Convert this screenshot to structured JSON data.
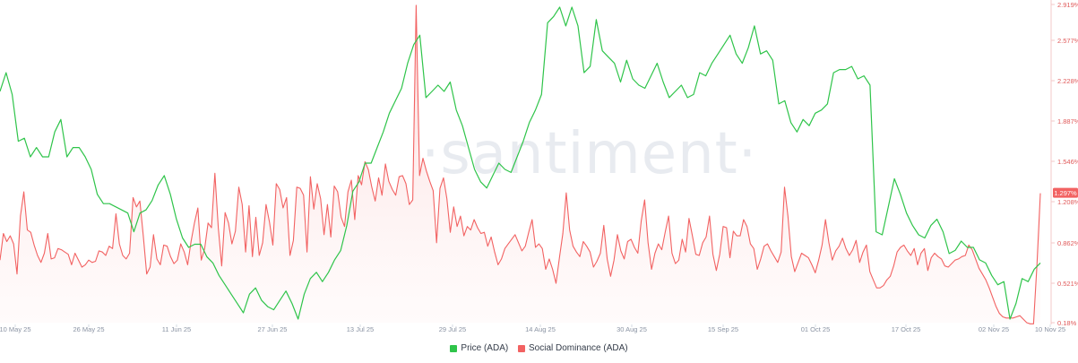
{
  "watermark": "·santiment·",
  "colors": {
    "price": "#2fc44a",
    "social": "#f26262",
    "social_fill": "#fde7e7",
    "axis_label": "#8a93a3"
  },
  "chart_data": {
    "type": "line",
    "x_ticks": [
      "10 May 25",
      "26 May 25",
      "11 Jun 25",
      "27 Jun 25",
      "13 Jul 25",
      "29 Jul 25",
      "14 Aug 25",
      "30 Aug 25",
      "15 Sep 25",
      "01 Oct 25",
      "17 Oct 25",
      "02 Nov 25",
      "10 Nov 25"
    ],
    "y_ticks_right": [
      "2.919%",
      "2.577%",
      "2.228%",
      "1.887%",
      "1.546%",
      "1.208%",
      "0.862%",
      "0.521%",
      "0.18%"
    ],
    "ylim_right": [
      0.18,
      2.919
    ],
    "current_value_label": "1.297%",
    "legend": [
      {
        "name": "Price (ADA)",
        "color": "#2fc44a"
      },
      {
        "name": "Social Dominance (ADA)",
        "color": "#f26262"
      }
    ],
    "series": [
      {
        "name": "Price (ADA)",
        "scale": "relative-0-1",
        "values": [
          0.73,
          0.79,
          0.72,
          0.57,
          0.58,
          0.52,
          0.55,
          0.52,
          0.52,
          0.6,
          0.64,
          0.52,
          0.55,
          0.55,
          0.52,
          0.48,
          0.4,
          0.37,
          0.37,
          0.36,
          0.35,
          0.34,
          0.28,
          0.34,
          0.35,
          0.38,
          0.43,
          0.46,
          0.4,
          0.32,
          0.26,
          0.23,
          0.24,
          0.24,
          0.2,
          0.18,
          0.14,
          0.11,
          0.08,
          0.05,
          0.02,
          0.08,
          0.1,
          0.06,
          0.04,
          0.03,
          0.06,
          0.09,
          0.05,
          0.0,
          0.08,
          0.13,
          0.15,
          0.12,
          0.15,
          0.19,
          0.22,
          0.3,
          0.41,
          0.44,
          0.5,
          0.5,
          0.55,
          0.6,
          0.66,
          0.7,
          0.74,
          0.82,
          0.88,
          0.91,
          0.71,
          0.73,
          0.75,
          0.73,
          0.76,
          0.67,
          0.62,
          0.55,
          0.48,
          0.44,
          0.42,
          0.46,
          0.5,
          0.48,
          0.47,
          0.52,
          0.57,
          0.63,
          0.67,
          0.72,
          0.95,
          0.97,
          1.0,
          0.94,
          1.0,
          0.94,
          0.79,
          0.81,
          0.96,
          0.86,
          0.84,
          0.82,
          0.76,
          0.83,
          0.77,
          0.75,
          0.74,
          0.78,
          0.82,
          0.76,
          0.71,
          0.73,
          0.75,
          0.71,
          0.72,
          0.79,
          0.78,
          0.82,
          0.85,
          0.88,
          0.91,
          0.85,
          0.82,
          0.87,
          0.94,
          0.85,
          0.86,
          0.83,
          0.69,
          0.7,
          0.63,
          0.6,
          0.64,
          0.62,
          0.66,
          0.67,
          0.69,
          0.79,
          0.8,
          0.8,
          0.81,
          0.77,
          0.78,
          0.75,
          0.28,
          0.27,
          0.36,
          0.45,
          0.4,
          0.34,
          0.3,
          0.27,
          0.26,
          0.3,
          0.32,
          0.28,
          0.21,
          0.22,
          0.25,
          0.23,
          0.23,
          0.19,
          0.18,
          0.14,
          0.11,
          0.12,
          0.0,
          0.05,
          0.13,
          0.12,
          0.16,
          0.18
        ]
      },
      {
        "name": "Social Dominance (ADA)",
        "scale": "percent",
        "values": [
          0.72,
          0.95,
          0.88,
          0.93,
          0.86,
          0.6,
          1.1,
          1.31,
          0.98,
          0.96,
          0.85,
          0.76,
          0.7,
          0.78,
          0.95,
          0.73,
          0.74,
          0.82,
          0.81,
          0.79,
          0.77,
          0.68,
          0.78,
          0.72,
          0.66,
          0.68,
          0.72,
          0.7,
          0.71,
          0.8,
          0.79,
          0.76,
          0.84,
          0.82,
          1.12,
          0.86,
          0.76,
          0.73,
          0.78,
          1.26,
          1.18,
          1.23,
          0.93,
          0.6,
          0.66,
          0.94,
          0.73,
          0.68,
          0.85,
          0.84,
          0.75,
          0.69,
          0.72,
          0.86,
          0.79,
          0.68,
          0.88,
          1.04,
          1.17,
          0.72,
          0.82,
          1.04,
          1.0,
          1.47,
          1.0,
          0.67,
          1.13,
          1.04,
          0.86,
          0.97,
          1.35,
          1.2,
          0.79,
          1.19,
          0.75,
          1.09,
          0.76,
          0.87,
          1.2,
          1.05,
          0.85,
          1.38,
          1.33,
          1.17,
          1.26,
          0.76,
          0.89,
          1.35,
          1.34,
          1.28,
          0.79,
          1.44,
          1.16,
          1.38,
          1.25,
          0.94,
          1.2,
          0.92,
          1.36,
          1.31,
          1.09,
          1.01,
          1.31,
          1.41,
          1.07,
          1.45,
          1.37,
          1.57,
          1.5,
          1.35,
          1.23,
          1.43,
          1.28,
          1.55,
          1.4,
          1.33,
          1.28,
          1.44,
          1.45,
          1.38,
          1.2,
          1.24,
          2.92,
          1.45,
          1.6,
          1.49,
          1.4,
          1.32,
          0.87,
          1.34,
          1.43,
          1.25,
          0.96,
          1.18,
          1.01,
          1.1,
          0.93,
          1.01,
          0.98,
          1.07,
          1.0,
          0.95,
          0.96,
          0.84,
          0.92,
          0.79,
          0.68,
          0.73,
          0.82,
          0.86,
          0.9,
          0.94,
          0.87,
          0.8,
          0.84,
          0.96,
          1.07,
          0.83,
          0.86,
          0.82,
          0.64,
          0.73,
          0.64,
          0.52,
          0.74,
          0.95,
          1.3,
          0.98,
          0.84,
          0.79,
          0.75,
          0.88,
          0.84,
          0.79,
          0.66,
          0.71,
          0.78,
          1.02,
          0.73,
          0.58,
          0.72,
          0.94,
          0.8,
          0.73,
          0.88,
          0.9,
          0.83,
          0.78,
          1.06,
          1.24,
          0.87,
          0.64,
          0.78,
          0.86,
          0.81,
          0.96,
          1.1,
          0.78,
          0.69,
          0.72,
          0.9,
          0.79,
          1.08,
          0.93,
          0.77,
          0.76,
          0.87,
          0.92,
          1.1,
          0.77,
          0.63,
          0.77,
          1.01,
          1.0,
          0.74,
          0.97,
          0.93,
          0.93,
          1.07,
          1.01,
          0.86,
          0.82,
          0.64,
          0.73,
          0.84,
          0.86,
          0.8,
          0.75,
          0.7,
          0.79,
          1.35,
          1.1,
          0.75,
          0.62,
          0.7,
          0.78,
          0.76,
          0.74,
          0.68,
          0.61,
          0.72,
          0.85,
          1.07,
          0.87,
          0.72,
          0.8,
          0.84,
          0.91,
          0.82,
          0.76,
          0.81,
          0.89,
          0.7,
          0.79,
          0.85,
          0.62,
          0.55,
          0.48,
          0.48,
          0.5,
          0.55,
          0.58,
          0.67,
          0.79,
          0.83,
          0.85,
          0.8,
          0.76,
          0.82,
          0.68,
          0.78,
          0.82,
          0.63,
          0.74,
          0.78,
          0.75,
          0.73,
          0.67,
          0.66,
          0.69,
          0.72,
          0.73,
          0.75,
          0.76,
          0.85,
          0.81,
          0.73,
          0.65,
          0.6,
          0.55,
          0.48,
          0.4,
          0.32,
          0.26,
          0.23,
          0.22,
          0.22,
          0.22,
          0.23,
          0.24,
          0.21,
          0.18,
          0.17,
          0.17,
          0.68,
          1.297
        ]
      }
    ]
  }
}
